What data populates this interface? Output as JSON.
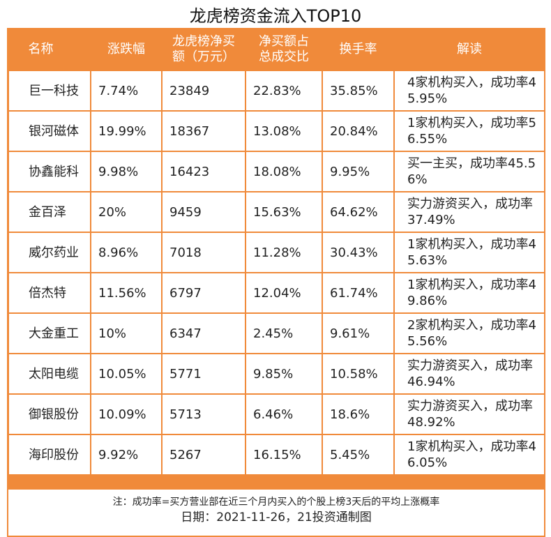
{
  "title": "龙虎榜资金流入TOP10",
  "headers": {
    "name": "名称",
    "change": "涨跌幅",
    "net_buy_line1": "龙虎榜净买",
    "net_buy_line2": "额（万元）",
    "ratio_line1": "净买额占",
    "ratio_line2": "总成交比",
    "turnover": "换手率",
    "interpretation": "解读"
  },
  "rows": [
    {
      "name": "巨一科技",
      "change": "7.74%",
      "net_buy": "23849",
      "ratio": "22.83%",
      "turnover": "35.85%",
      "note": "4家机构买入，成功率45.95%"
    },
    {
      "name": "银河磁体",
      "change": "19.99%",
      "net_buy": "18367",
      "ratio": "13.08%",
      "turnover": "20.84%",
      "note": "1家机构买入，成功率56.55%"
    },
    {
      "name": "协鑫能科",
      "change": "9.98%",
      "net_buy": "16423",
      "ratio": "18.08%",
      "turnover": "9.95%",
      "note": "买一主买，成功率45.56%"
    },
    {
      "name": "金百泽",
      "change": "20%",
      "net_buy": "9459",
      "ratio": "15.63%",
      "turnover": "64.62%",
      "note": "实力游资买入，成功率37.49%"
    },
    {
      "name": "威尔药业",
      "change": "8.96%",
      "net_buy": "7018",
      "ratio": "11.28%",
      "turnover": "30.43%",
      "note": "1家机构买入，成功率45.63%"
    },
    {
      "name": "倍杰特",
      "change": "11.56%",
      "net_buy": "6797",
      "ratio": "12.04%",
      "turnover": "61.74%",
      "note": "1家机构买入，成功率49.86%"
    },
    {
      "name": "大金重工",
      "change": "10%",
      "net_buy": "6347",
      "ratio": "2.45%",
      "turnover": "9.61%",
      "note": "2家机构买入，成功率45.56%"
    },
    {
      "name": "太阳电缆",
      "change": "10.05%",
      "net_buy": "5771",
      "ratio": "9.85%",
      "turnover": "10.58%",
      "note": "实力游资买入，成功率46.94%"
    },
    {
      "name": "御银股份",
      "change": "10.09%",
      "net_buy": "5713",
      "ratio": "6.46%",
      "turnover": "18.6%",
      "note": "实力游资买入，成功率48.92%"
    },
    {
      "name": "海印股份",
      "change": "9.92%",
      "net_buy": "5267",
      "ratio": "16.15%",
      "turnover": "5.45%",
      "note": "1家机构买入，成功率46.05%"
    }
  ],
  "footnote": "注：成功率=买方营业部在近三个月内买入的个股上榜3天后的平均上涨概率",
  "date_line": "日期：2021-11-26，21投资通制图",
  "colors": {
    "accent": "#f08a3a",
    "header_text": "#ffffff"
  }
}
